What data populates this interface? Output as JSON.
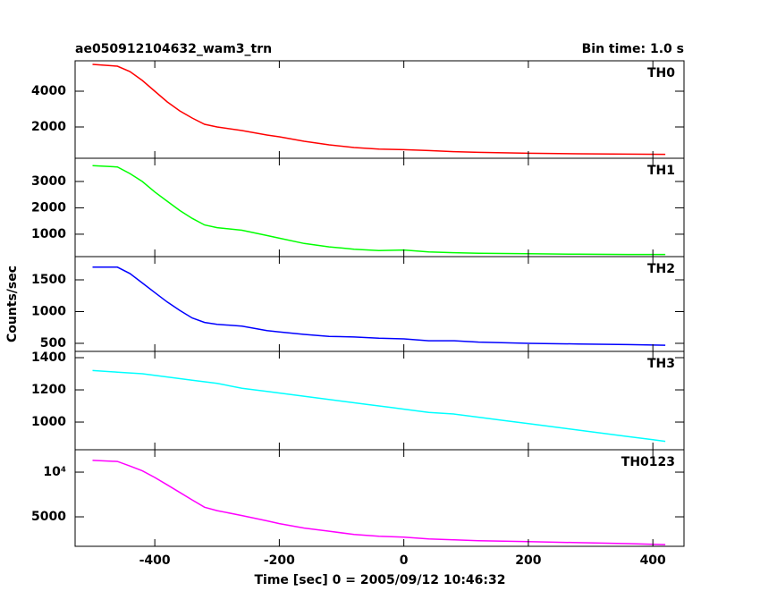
{
  "title": "ae050912104632_wam3_trn",
  "subtitle": "Bin time: 1.0 s",
  "ylabel": "Counts/sec",
  "xlabel": "Time [sec] 0 = 2005/09/12 10:46:32",
  "chart_data": [
    {
      "type": "line",
      "label": "TH0",
      "color": "#ff0000",
      "xlim": [
        -528,
        450
      ],
      "ylim": [
        250,
        5700
      ],
      "yticks": [
        2000,
        4000
      ],
      "x": [
        -500,
        -460,
        -440,
        -420,
        -400,
        -380,
        -360,
        -340,
        -320,
        -300,
        -260,
        -220,
        -200,
        -160,
        -120,
        -80,
        -40,
        0,
        40,
        80,
        120,
        200,
        280,
        360,
        420
      ],
      "values": [
        5500,
        5400,
        5100,
        4600,
        4000,
        3400,
        2900,
        2500,
        2150,
        2000,
        1800,
        1550,
        1450,
        1200,
        1000,
        850,
        760,
        730,
        680,
        620,
        580,
        530,
        500,
        480,
        470
      ]
    },
    {
      "type": "line",
      "label": "TH1",
      "color": "#00ff00",
      "xlim": [
        -528,
        450
      ],
      "ylim": [
        150,
        3880
      ],
      "yticks": [
        1000,
        2000,
        3000
      ],
      "x": [
        -500,
        -460,
        -440,
        -420,
        -400,
        -380,
        -360,
        -340,
        -320,
        -300,
        -260,
        -220,
        -200,
        -160,
        -120,
        -80,
        -40,
        0,
        40,
        80,
        120,
        200,
        280,
        360,
        420
      ],
      "values": [
        3600,
        3550,
        3300,
        3000,
        2600,
        2250,
        1900,
        1600,
        1350,
        1250,
        1150,
        950,
        850,
        650,
        520,
        430,
        380,
        400,
        330,
        300,
        280,
        260,
        240,
        230,
        230
      ]
    },
    {
      "type": "line",
      "label": "TH2",
      "color": "#0000ff",
      "xlim": [
        -528,
        450
      ],
      "ylim": [
        373,
        1866
      ],
      "yticks": [
        500,
        1000,
        1500
      ],
      "x": [
        -500,
        -460,
        -440,
        -420,
        -400,
        -380,
        -360,
        -340,
        -320,
        -300,
        -260,
        -220,
        -200,
        -160,
        -120,
        -80,
        -40,
        0,
        40,
        80,
        120,
        200,
        280,
        360,
        420
      ],
      "values": [
        1700,
        1700,
        1600,
        1450,
        1300,
        1150,
        1020,
        900,
        830,
        800,
        770,
        700,
        680,
        640,
        610,
        600,
        580,
        570,
        540,
        540,
        520,
        500,
        490,
        480,
        470
      ]
    },
    {
      "type": "line",
      "label": "TH3",
      "color": "#00ffff",
      "xlim": [
        -528,
        450
      ],
      "ylim": [
        828,
        1439
      ],
      "yticks": [
        1000,
        1200,
        1400
      ],
      "x": [
        -500,
        -460,
        -420,
        -380,
        -340,
        -300,
        -260,
        -220,
        -180,
        -140,
        -100,
        -60,
        -20,
        0,
        40,
        80,
        120,
        160,
        200,
        240,
        280,
        320,
        360,
        400,
        420
      ],
      "values": [
        1320,
        1310,
        1300,
        1280,
        1260,
        1240,
        1210,
        1190,
        1170,
        1150,
        1130,
        1110,
        1090,
        1080,
        1060,
        1050,
        1030,
        1010,
        990,
        970,
        950,
        930,
        910,
        890,
        880
      ]
    },
    {
      "type": "line",
      "label": "TH0123",
      "color": "#ff00ff",
      "log": true,
      "xlim": [
        -528,
        450
      ],
      "ylim": [
        3165,
        14150
      ],
      "yticks": [
        5000,
        {
          "value": 10000,
          "label": "10⁴"
        }
      ],
      "xticks": [
        -400,
        -200,
        0,
        200,
        400
      ],
      "x": [
        -500,
        -460,
        -440,
        -420,
        -400,
        -380,
        -360,
        -340,
        -320,
        -300,
        -260,
        -220,
        -200,
        -160,
        -120,
        -80,
        -40,
        0,
        40,
        80,
        120,
        200,
        280,
        360,
        420
      ],
      "values": [
        12000,
        11800,
        11000,
        10200,
        9200,
        8200,
        7300,
        6500,
        5800,
        5500,
        5100,
        4700,
        4500,
        4200,
        4000,
        3800,
        3700,
        3650,
        3550,
        3500,
        3450,
        3400,
        3350,
        3300,
        3250
      ]
    }
  ]
}
